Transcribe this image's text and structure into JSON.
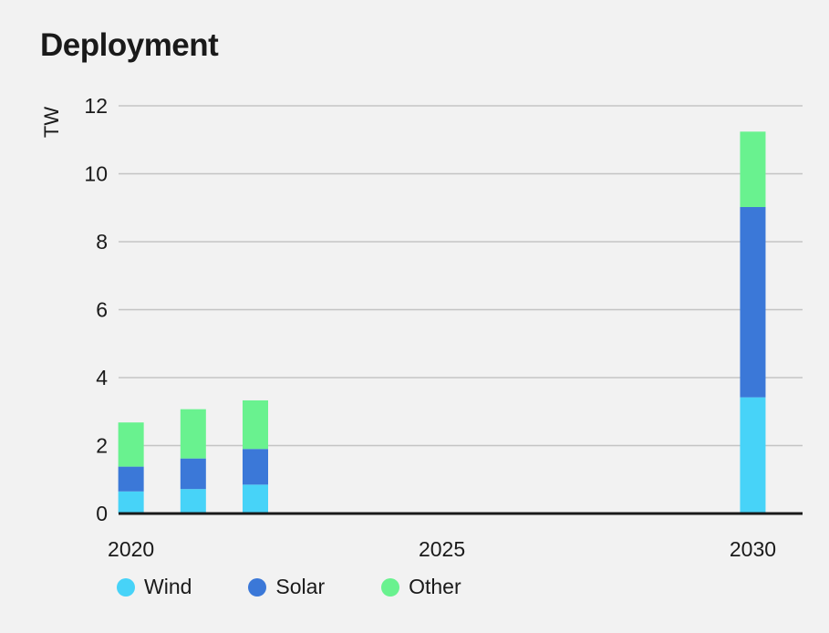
{
  "title": "Deployment",
  "chart_data": {
    "type": "bar",
    "stacked": true,
    "title": "Deployment",
    "ylabel": "TW",
    "xlabel": "",
    "x": [
      2020,
      2021,
      2022,
      2030
    ],
    "x_ticks": [
      2020,
      2025,
      2030
    ],
    "xlim": [
      2019.8,
      2030.8
    ],
    "ylim": [
      0,
      12
    ],
    "y_ticks": [
      0,
      2,
      4,
      6,
      8,
      10,
      12
    ],
    "grid": true,
    "legend": "bottom-left",
    "series": [
      {
        "name": "Wind",
        "color": "#47d3f8",
        "values": [
          0.65,
          0.72,
          0.85,
          3.42
        ]
      },
      {
        "name": "Solar",
        "color": "#3b78d8",
        "values": [
          0.73,
          0.9,
          1.05,
          5.6
        ]
      },
      {
        "name": "Other",
        "color": "#69f28f",
        "values": [
          1.3,
          1.45,
          1.43,
          2.22
        ]
      }
    ]
  }
}
